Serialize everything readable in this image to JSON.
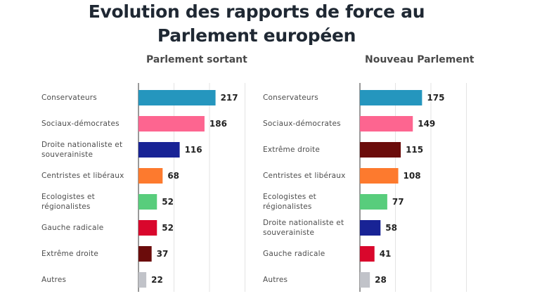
{
  "title": "Evolution des rapports de force au Parlement européen",
  "colors": {
    "Conservateurs": "#2596be",
    "Sociaux-démocrates": "#fd6590",
    "Droite nationaliste et souverainiste": "#182395",
    "Centristes et libéraux": "#fd7a2e",
    "Ecologistes et régionalistes": "#58cd7c",
    "Gauche radicale": "#d9072c",
    "Extrême droite": "#6b0c0b",
    "Autres": "#c1c3c9"
  },
  "chart_data": [
    {
      "type": "bar",
      "title": "Parlement sortant",
      "categories": [
        "Conservateurs",
        "Sociaux-démocrates",
        "Droite nationaliste et souverainiste",
        "Centristes et libéraux",
        "Ecologistes et régionalistes",
        "Gauche radicale",
        "Extrême droite",
        "Autres"
      ],
      "values": [
        217,
        186,
        116,
        68,
        52,
        52,
        37,
        22
      ],
      "xlim": [
        0,
        300
      ],
      "orientation": "horizontal",
      "grid": true
    },
    {
      "type": "bar",
      "title": "Nouveau Parlement",
      "categories": [
        "Conservateurs",
        "Sociaux-démocrates",
        "Extrême droite",
        "Centristes et libéraux",
        "Ecologistes et régionalistes",
        "Droite nationaliste et souverainiste",
        "Gauche radicale",
        "Autres"
      ],
      "values": [
        175,
        149,
        115,
        108,
        77,
        58,
        41,
        28
      ],
      "xlim": [
        0,
        300
      ],
      "orientation": "horizontal",
      "grid": true
    }
  ]
}
